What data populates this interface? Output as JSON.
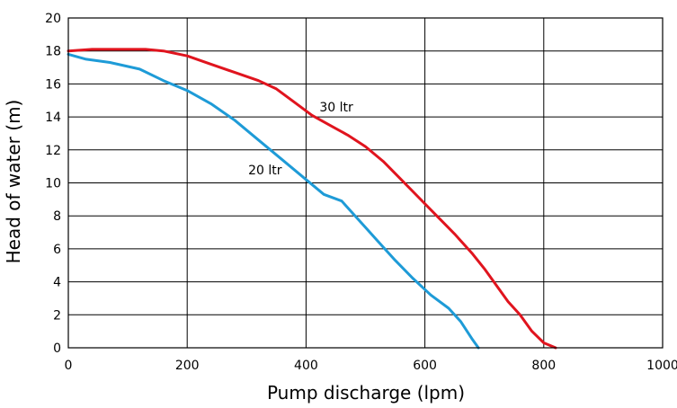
{
  "chart_data": {
    "type": "line",
    "title": "",
    "xlabel": "Pump discharge (lpm)",
    "ylabel": "Head of water (m)",
    "xlim": [
      0,
      1000
    ],
    "ylim": [
      0,
      20
    ],
    "xticks": [
      0,
      200,
      400,
      600,
      800,
      1000
    ],
    "yticks": [
      0,
      2,
      4,
      6,
      8,
      10,
      12,
      14,
      16,
      18,
      20
    ],
    "grid": true,
    "legend": "none",
    "series": [
      {
        "name": "30 ltr",
        "color": "#e0141e",
        "x": [
          0,
          40,
          80,
          130,
          160,
          200,
          240,
          280,
          320,
          350,
          380,
          410,
          440,
          470,
          500,
          530,
          560,
          590,
          620,
          650,
          680,
          700,
          720,
          740,
          760,
          780,
          800,
          820
        ],
        "y": [
          18.0,
          18.1,
          18.1,
          18.1,
          18.0,
          17.7,
          17.2,
          16.7,
          16.2,
          15.7,
          14.9,
          14.1,
          13.5,
          12.9,
          12.2,
          11.3,
          10.2,
          9.1,
          8.0,
          6.9,
          5.7,
          4.8,
          3.8,
          2.8,
          2.0,
          1.0,
          0.3,
          0.0
        ]
      },
      {
        "name": "20 ltr",
        "color": "#1e9bd7",
        "x": [
          0,
          30,
          70,
          120,
          160,
          200,
          240,
          280,
          320,
          360,
          400,
          430,
          460,
          490,
          520,
          550,
          580,
          610,
          640,
          660,
          680,
          690
        ],
        "y": [
          17.8,
          17.5,
          17.3,
          16.9,
          16.2,
          15.6,
          14.8,
          13.8,
          12.6,
          11.4,
          10.2,
          9.3,
          8.9,
          7.7,
          6.5,
          5.3,
          4.2,
          3.2,
          2.4,
          1.6,
          0.5,
          0.0
        ]
      }
    ],
    "annotations": [
      {
        "text": "30 ltr",
        "x": 400,
        "y": 14.6
      },
      {
        "text": "20 ltr",
        "x": 280,
        "y": 10.8
      }
    ]
  }
}
